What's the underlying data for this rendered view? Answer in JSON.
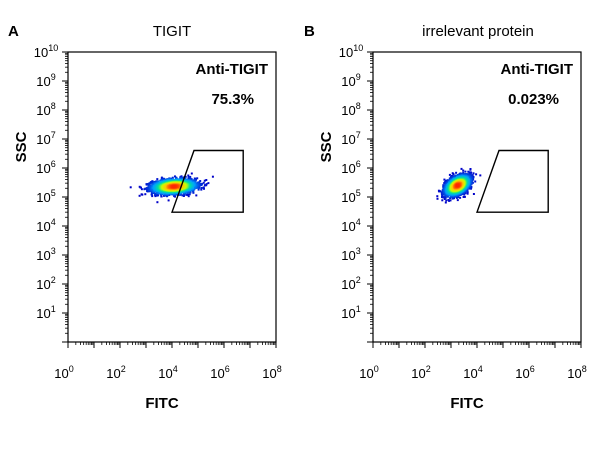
{
  "chart_data": [
    {
      "type": "scatter",
      "panel_label": "A",
      "title": "TIGIT",
      "xlabel": "FITC",
      "ylabel": "SSC",
      "x_scale": "log",
      "y_scale": "log",
      "xlim": [
        1,
        100000000
      ],
      "ylim": [
        1,
        10000000000
      ],
      "x_ticks": [
        {
          "value": 1,
          "base": "10",
          "exp": "0"
        },
        {
          "value": 100,
          "base": "10",
          "exp": "2"
        },
        {
          "value": 10000,
          "base": "10",
          "exp": "4"
        },
        {
          "value": 1000000,
          "base": "10",
          "exp": "6"
        },
        {
          "value": 100000000,
          "base": "10",
          "exp": "8"
        }
      ],
      "y_ticks": [
        {
          "value": 10,
          "base": "10",
          "exp": "1"
        },
        {
          "value": 100,
          "base": "10",
          "exp": "2"
        },
        {
          "value": 1000,
          "base": "10",
          "exp": "3"
        },
        {
          "value": 10000,
          "base": "10",
          "exp": "4"
        },
        {
          "value": 100000,
          "base": "10",
          "exp": "5"
        },
        {
          "value": 1000000,
          "base": "10",
          "exp": "6"
        },
        {
          "value": 10000000,
          "base": "10",
          "exp": "7"
        },
        {
          "value": 100000000,
          "base": "10",
          "exp": "8"
        },
        {
          "value": 1000000000,
          "base": "10",
          "exp": "9"
        },
        {
          "value": 10000000000,
          "base": "10",
          "exp": "10"
        }
      ],
      "gate": {
        "name": "Anti-TIGIT",
        "percentage": "75.3%",
        "polygon": [
          [
            10000,
            30000
          ],
          [
            70000,
            4000000
          ],
          [
            5500000,
            4000000
          ],
          [
            5500000,
            30000
          ]
        ]
      },
      "population": {
        "center_x": 12000,
        "center_y": 230000,
        "spread_x_decades": 0.75,
        "spread_y_decades": 0.22,
        "tilt": 0.05
      }
    },
    {
      "type": "scatter",
      "panel_label": "B",
      "title": "irrelevant protein",
      "xlabel": "FITC",
      "ylabel": "SSC",
      "x_scale": "log",
      "y_scale": "log",
      "xlim": [
        1,
        100000000
      ],
      "ylim": [
        1,
        10000000000
      ],
      "x_ticks": [
        {
          "value": 1,
          "base": "10",
          "exp": "0"
        },
        {
          "value": 100,
          "base": "10",
          "exp": "2"
        },
        {
          "value": 10000,
          "base": "10",
          "exp": "4"
        },
        {
          "value": 1000000,
          "base": "10",
          "exp": "6"
        },
        {
          "value": 100000000,
          "base": "10",
          "exp": "8"
        }
      ],
      "y_ticks": [
        {
          "value": 10,
          "base": "10",
          "exp": "1"
        },
        {
          "value": 100,
          "base": "10",
          "exp": "2"
        },
        {
          "value": 1000,
          "base": "10",
          "exp": "3"
        },
        {
          "value": 10000,
          "base": "10",
          "exp": "4"
        },
        {
          "value": 100000,
          "base": "10",
          "exp": "5"
        },
        {
          "value": 1000000,
          "base": "10",
          "exp": "6"
        },
        {
          "value": 10000000,
          "base": "10",
          "exp": "7"
        },
        {
          "value": 100000000,
          "base": "10",
          "exp": "8"
        },
        {
          "value": 1000000000,
          "base": "10",
          "exp": "9"
        },
        {
          "value": 10000000000,
          "base": "10",
          "exp": "10"
        }
      ],
      "gate": {
        "name": "Anti-TIGIT",
        "percentage": "0.023%",
        "polygon": [
          [
            10000,
            30000
          ],
          [
            70000,
            4000000
          ],
          [
            5500000,
            4000000
          ],
          [
            5500000,
            30000
          ]
        ]
      },
      "population": {
        "center_x": 1800,
        "center_y": 250000,
        "spread_x_decades": 0.42,
        "spread_y_decades": 0.27,
        "tilt": 0.32
      }
    }
  ],
  "colors": {
    "axis": "#000000",
    "gate": "#000000",
    "density": [
      "#0000c8",
      "#00a0ff",
      "#00e0a0",
      "#c8ff00",
      "#ffc800",
      "#ff2800"
    ]
  }
}
